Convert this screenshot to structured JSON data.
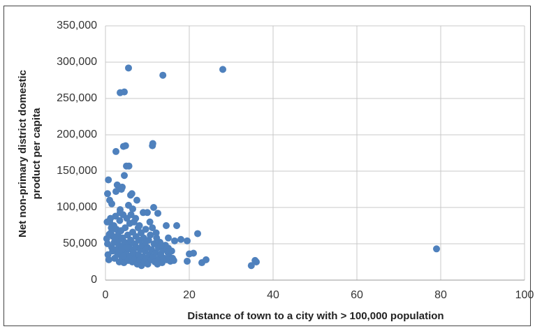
{
  "chart_data": {
    "type": "scatter",
    "xlabel": "Distance of town to a city with > 100,000 population",
    "ylabel": [
      "Net non-primary district domestic",
      "product per capita"
    ],
    "color": "#4f81bd",
    "xlim": [
      0,
      100
    ],
    "xticks": [
      0,
      20,
      40,
      60,
      80,
      100
    ],
    "ylim": [
      0,
      350000
    ],
    "yticks": [
      0,
      {
        "value": 50000,
        "label": "50,000"
      },
      {
        "value": 100000,
        "label": "100,000"
      },
      {
        "value": 150000,
        "label": "150,000"
      },
      {
        "value": 200000,
        "label": "200,000"
      },
      {
        "value": 250000,
        "label": "250,000"
      },
      {
        "value": 300000,
        "label": "300,000"
      },
      {
        "value": 350000,
        "label": "350,000"
      }
    ],
    "grid": true,
    "x": [
      5.5,
      13.7,
      28,
      3.5,
      4.5,
      4.3,
      4.8,
      11.2,
      11.3,
      2.5,
      5,
      5.6,
      4.5,
      0.5,
      0.7,
      2.5,
      2.8,
      3.5,
      3.8,
      4,
      6,
      6.3,
      1,
      1.5,
      7.5,
      5.5,
      11.5,
      6.5,
      3.5,
      12.5,
      9,
      10,
      14.5,
      17,
      22,
      18,
      19.5,
      16.5,
      15,
      20,
      21,
      19.5,
      23,
      24,
      34.8,
      35.7,
      36,
      79,
      15,
      0.3,
      0.5,
      0.6,
      0.8,
      1,
      1.2,
      1.3,
      1.5,
      1.7,
      1.8,
      2,
      2.1,
      2.2,
      2.4,
      2.6,
      2.7,
      2.9,
      3,
      3.1,
      3.2,
      3.3,
      3.4,
      3.6,
      3.7,
      3.9,
      4,
      4.1,
      4.2,
      4.4,
      4.6,
      4.7,
      4.9,
      5,
      5.1,
      5.3,
      5.4,
      5.6,
      5.8,
      5.9,
      6,
      6.2,
      6.4,
      6.5,
      6.7,
      6.8,
      7,
      7.1,
      7.3,
      7.4,
      7.6,
      7.8,
      7.9,
      8,
      8.2,
      8.3,
      8.5,
      8.6,
      8.8,
      9,
      9.1,
      9.3,
      9.4,
      9.6,
      9.8,
      10,
      10.1,
      10.3,
      10.5,
      10.7,
      10.9,
      11,
      11.2,
      11.4,
      11.6,
      11.8,
      12,
      12.2,
      12.4,
      12.6,
      12.8,
      13,
      13.2,
      13.5,
      13.8,
      14,
      14.3,
      14.6,
      14.9,
      15.2,
      15.5,
      15.8,
      16,
      16.3,
      0.4,
      0.9,
      1.4,
      2.3,
      3.5,
      4.3,
      5.2,
      6.1,
      7.2,
      8.1,
      9.5,
      10.6,
      12.1,
      13.3
    ],
    "values": [
      292000,
      282000,
      290000,
      258000,
      259000,
      184000,
      185000,
      185000,
      188000,
      177000,
      157000,
      157000,
      144000,
      119000,
      138000,
      122000,
      131000,
      127000,
      125000,
      128000,
      117000,
      119000,
      110000,
      105000,
      110000,
      103000,
      100000,
      98000,
      97000,
      92000,
      93000,
      93000,
      75000,
      75000,
      64000,
      56000,
      54000,
      54000,
      58000,
      36000,
      37000,
      26000,
      24000,
      28000,
      20000,
      27000,
      25000,
      43000,
      44000,
      57000,
      50000,
      35000,
      28000,
      80000,
      85000,
      65000,
      45000,
      40000,
      60000,
      75000,
      52000,
      30000,
      88000,
      70000,
      42000,
      35000,
      62000,
      55000,
      48000,
      25000,
      82000,
      38000,
      68000,
      45000,
      30000,
      58000,
      90000,
      24000,
      52000,
      72000,
      40000,
      35000,
      85000,
      62000,
      27000,
      48000,
      78000,
      33000,
      55000,
      42000,
      25000,
      66000,
      38000,
      80000,
      50000,
      30000,
      60000,
      45000,
      22000,
      72000,
      35000,
      55000,
      28000,
      42000,
      65000,
      20000,
      48000,
      32000,
      58000,
      25000,
      40000,
      70000,
      30000,
      45000,
      22000,
      55000,
      35000,
      62000,
      28000,
      42000,
      72000,
      32000,
      50000,
      25000,
      38000,
      58000,
      22000,
      45000,
      30000,
      52000,
      36000,
      24000,
      42000,
      30000,
      48000,
      28000,
      38000,
      32000,
      26000,
      40000,
      30000,
      27000,
      80000,
      63000,
      72000,
      58000,
      93000,
      33000,
      45000,
      90000,
      85000,
      75000,
      52000,
      80000,
      65000,
      48000
    ]
  }
}
